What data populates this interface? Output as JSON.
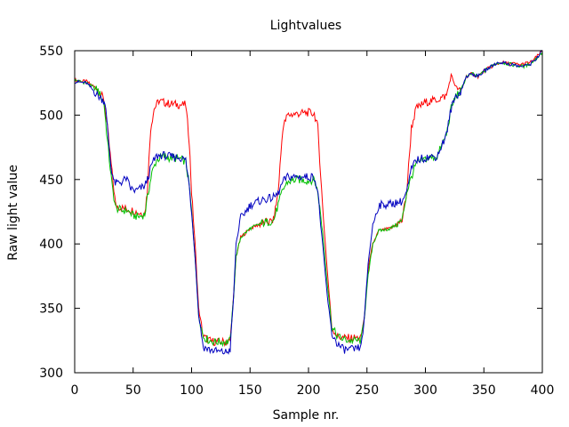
{
  "chart_data": {
    "type": "line",
    "title": "Lightvalues",
    "xlabel": "Sample nr.",
    "ylabel": "Raw light value",
    "xlim": [
      0,
      400
    ],
    "ylim": [
      300,
      550
    ],
    "xticks": [
      0,
      50,
      100,
      150,
      200,
      250,
      300,
      350,
      400
    ],
    "yticks": [
      300,
      350,
      400,
      450,
      500,
      550
    ],
    "grid": false,
    "legend": "none",
    "series": [
      {
        "color": "#ff0000",
        "points": [
          [
            0,
            527
          ],
          [
            10,
            526
          ],
          [
            20,
            520
          ],
          [
            25,
            512
          ],
          [
            28,
            490
          ],
          [
            32,
            455
          ],
          [
            35,
            430
          ],
          [
            40,
            428
          ],
          [
            45,
            427
          ],
          [
            50,
            426
          ],
          [
            55,
            424
          ],
          [
            60,
            424
          ],
          [
            62,
            440
          ],
          [
            65,
            490
          ],
          [
            68,
            505
          ],
          [
            72,
            511
          ],
          [
            80,
            509
          ],
          [
            90,
            508
          ],
          [
            95,
            508
          ],
          [
            98,
            480
          ],
          [
            100,
            440
          ],
          [
            103,
            400
          ],
          [
            106,
            350
          ],
          [
            110,
            328
          ],
          [
            115,
            325
          ],
          [
            120,
            324
          ],
          [
            125,
            324
          ],
          [
            130,
            324
          ],
          [
            133,
            325
          ],
          [
            136,
            360
          ],
          [
            138,
            390
          ],
          [
            142,
            405
          ],
          [
            150,
            412
          ],
          [
            160,
            416
          ],
          [
            170,
            418
          ],
          [
            174,
            440
          ],
          [
            178,
            490
          ],
          [
            182,
            500
          ],
          [
            190,
            501
          ],
          [
            200,
            502
          ],
          [
            205,
            501
          ],
          [
            208,
            490
          ],
          [
            212,
            430
          ],
          [
            216,
            380
          ],
          [
            220,
            335
          ],
          [
            225,
            328
          ],
          [
            230,
            327
          ],
          [
            235,
            327
          ],
          [
            240,
            327
          ],
          [
            245,
            327
          ],
          [
            248,
            345
          ],
          [
            251,
            380
          ],
          [
            255,
            400
          ],
          [
            260,
            410
          ],
          [
            270,
            412
          ],
          [
            280,
            418
          ],
          [
            284,
            440
          ],
          [
            288,
            490
          ],
          [
            292,
            505
          ],
          [
            300,
            510
          ],
          [
            310,
            512
          ],
          [
            318,
            515
          ],
          [
            322,
            531
          ],
          [
            326,
            522
          ],
          [
            330,
            518
          ],
          [
            335,
            530
          ],
          [
            340,
            532
          ],
          [
            345,
            530
          ],
          [
            350,
            534
          ],
          [
            355,
            537
          ],
          [
            360,
            539
          ],
          [
            365,
            541
          ],
          [
            370,
            540
          ],
          [
            375,
            540
          ],
          [
            380,
            539
          ],
          [
            385,
            540
          ],
          [
            390,
            541
          ],
          [
            395,
            545
          ],
          [
            400,
            550
          ]
        ]
      },
      {
        "color": "#00c000",
        "points": [
          [
            0,
            527
          ],
          [
            10,
            525
          ],
          [
            20,
            519
          ],
          [
            25,
            510
          ],
          [
            28,
            480
          ],
          [
            32,
            445
          ],
          [
            35,
            428
          ],
          [
            40,
            426
          ],
          [
            45,
            426
          ],
          [
            50,
            422
          ],
          [
            55,
            421
          ],
          [
            60,
            423
          ],
          [
            63,
            440
          ],
          [
            66,
            455
          ],
          [
            70,
            465
          ],
          [
            75,
            468
          ],
          [
            80,
            467
          ],
          [
            90,
            466
          ],
          [
            95,
            464
          ],
          [
            98,
            445
          ],
          [
            100,
            425
          ],
          [
            103,
            390
          ],
          [
            106,
            345
          ],
          [
            110,
            328
          ],
          [
            115,
            325
          ],
          [
            120,
            324
          ],
          [
            125,
            324
          ],
          [
            130,
            324
          ],
          [
            133,
            325
          ],
          [
            136,
            360
          ],
          [
            138,
            390
          ],
          [
            142,
            405
          ],
          [
            150,
            412
          ],
          [
            160,
            416
          ],
          [
            170,
            418
          ],
          [
            174,
            430
          ],
          [
            178,
            442
          ],
          [
            182,
            448
          ],
          [
            190,
            450
          ],
          [
            200,
            449
          ],
          [
            205,
            450
          ],
          [
            208,
            440
          ],
          [
            212,
            410
          ],
          [
            216,
            370
          ],
          [
            220,
            335
          ],
          [
            225,
            328
          ],
          [
            230,
            326
          ],
          [
            235,
            325
          ],
          [
            240,
            325
          ],
          [
            245,
            325
          ],
          [
            248,
            345
          ],
          [
            251,
            375
          ],
          [
            255,
            400
          ],
          [
            260,
            410
          ],
          [
            270,
            412
          ],
          [
            280,
            418
          ],
          [
            284,
            440
          ],
          [
            288,
            452
          ],
          [
            292,
            462
          ],
          [
            300,
            466
          ],
          [
            310,
            468
          ],
          [
            318,
            485
          ],
          [
            322,
            505
          ],
          [
            326,
            515
          ],
          [
            330,
            518
          ],
          [
            335,
            530
          ],
          [
            340,
            532
          ],
          [
            345,
            530
          ],
          [
            350,
            534
          ],
          [
            355,
            537
          ],
          [
            360,
            540
          ],
          [
            365,
            541
          ],
          [
            370,
            540
          ],
          [
            375,
            539
          ],
          [
            380,
            538
          ],
          [
            385,
            538
          ],
          [
            390,
            540
          ],
          [
            395,
            544
          ],
          [
            400,
            549
          ]
        ]
      },
      {
        "color": "#0000c0",
        "points": [
          [
            0,
            526
          ],
          [
            10,
            525
          ],
          [
            20,
            515
          ],
          [
            24,
            512
          ],
          [
            26,
            510
          ],
          [
            28,
            490
          ],
          [
            31,
            460
          ],
          [
            34,
            447
          ],
          [
            40,
            448
          ],
          [
            44,
            451
          ],
          [
            48,
            443
          ],
          [
            52,
            441
          ],
          [
            56,
            443
          ],
          [
            60,
            445
          ],
          [
            63,
            452
          ],
          [
            66,
            462
          ],
          [
            70,
            468
          ],
          [
            75,
            469
          ],
          [
            80,
            468
          ],
          [
            90,
            467
          ],
          [
            95,
            465
          ],
          [
            98,
            445
          ],
          [
            100,
            425
          ],
          [
            103,
            390
          ],
          [
            106,
            345
          ],
          [
            110,
            320
          ],
          [
            115,
            318
          ],
          [
            120,
            317
          ],
          [
            125,
            316
          ],
          [
            130,
            316
          ],
          [
            133,
            318
          ],
          [
            136,
            360
          ],
          [
            138,
            400
          ],
          [
            142,
            420
          ],
          [
            150,
            430
          ],
          [
            160,
            434
          ],
          [
            170,
            436
          ],
          [
            174,
            439
          ],
          [
            178,
            448
          ],
          [
            182,
            452
          ],
          [
            190,
            452
          ],
          [
            200,
            452
          ],
          [
            205,
            452
          ],
          [
            208,
            440
          ],
          [
            212,
            400
          ],
          [
            216,
            360
          ],
          [
            220,
            330
          ],
          [
            225,
            322
          ],
          [
            230,
            318
          ],
          [
            235,
            318
          ],
          [
            240,
            318
          ],
          [
            245,
            320
          ],
          [
            248,
            345
          ],
          [
            251,
            385
          ],
          [
            255,
            415
          ],
          [
            260,
            430
          ],
          [
            270,
            431
          ],
          [
            280,
            433
          ],
          [
            284,
            440
          ],
          [
            288,
            458
          ],
          [
            292,
            465
          ],
          [
            300,
            467
          ],
          [
            310,
            468
          ],
          [
            318,
            485
          ],
          [
            322,
            505
          ],
          [
            326,
            515
          ],
          [
            330,
            518
          ],
          [
            335,
            530
          ],
          [
            340,
            532
          ],
          [
            345,
            530
          ],
          [
            350,
            534
          ],
          [
            355,
            537
          ],
          [
            360,
            540
          ],
          [
            365,
            541
          ],
          [
            370,
            540
          ],
          [
            375,
            539
          ],
          [
            380,
            538
          ],
          [
            385,
            538
          ],
          [
            390,
            540
          ],
          [
            395,
            544
          ],
          [
            400,
            550
          ]
        ]
      }
    ]
  }
}
